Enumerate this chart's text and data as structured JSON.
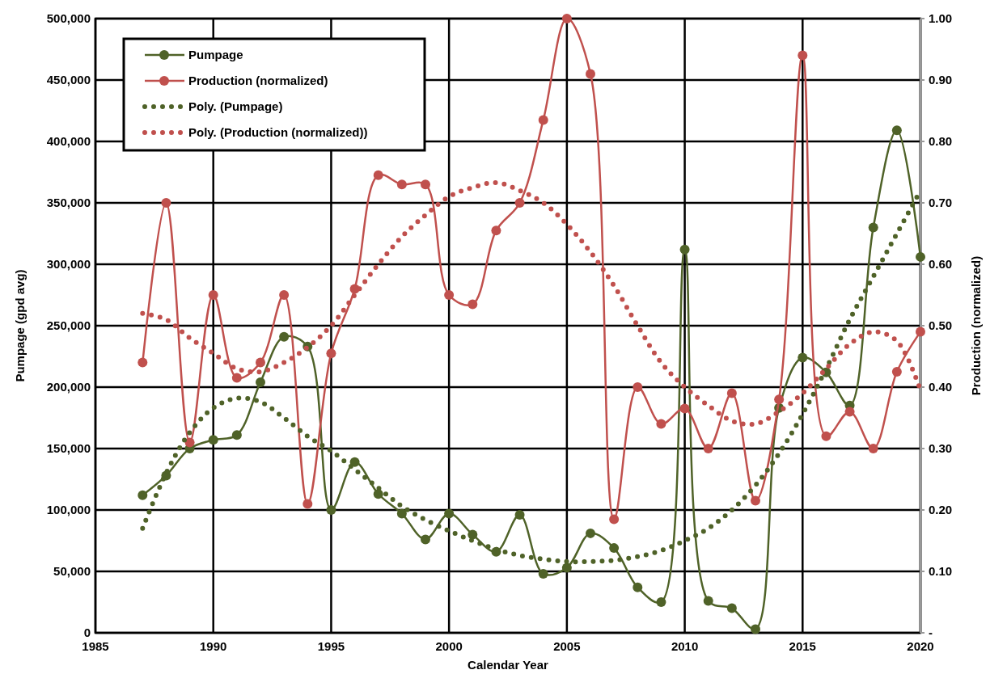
{
  "chart_data": {
    "type": "line",
    "xlabel": "Calendar Year",
    "ylabel": "Pumpage (gpd avg)",
    "y2label": "Production (normalized)",
    "x": [
      1987,
      1988,
      1989,
      1990,
      1991,
      1992,
      1993,
      1994,
      1995,
      1996,
      1997,
      1998,
      1999,
      2000,
      2001,
      2002,
      2003,
      2004,
      2005,
      2006,
      2007,
      2008,
      2009,
      2010,
      2011,
      2012,
      2013,
      2014,
      2015,
      2016,
      2017,
      2018,
      2019,
      2020
    ],
    "xlim": [
      1985,
      2020
    ],
    "xticks": [
      1985,
      1990,
      1995,
      2000,
      2005,
      2010,
      2015,
      2020
    ],
    "ylim": [
      0,
      500000
    ],
    "yticks": [
      {
        "value": 0,
        "label": "0"
      },
      {
        "value": 50000,
        "label": "50,000"
      },
      {
        "value": 100000,
        "label": "100,000"
      },
      {
        "value": 150000,
        "label": "150,000"
      },
      {
        "value": 200000,
        "label": "200,000"
      },
      {
        "value": 250000,
        "label": "250,000"
      },
      {
        "value": 300000,
        "label": "300,000"
      },
      {
        "value": 350000,
        "label": "350,000"
      },
      {
        "value": 400000,
        "label": "400,000"
      },
      {
        "value": 450000,
        "label": "450,000"
      },
      {
        "value": 500000,
        "label": "500,000"
      }
    ],
    "y2lim": [
      0,
      1
    ],
    "y2ticks": [
      {
        "value": 0,
        "label": "-"
      },
      {
        "value": 0.1,
        "label": "0.10"
      },
      {
        "value": 0.2,
        "label": "0.20"
      },
      {
        "value": 0.3,
        "label": "0.30"
      },
      {
        "value": 0.4,
        "label": "0.40"
      },
      {
        "value": 0.5,
        "label": "0.50"
      },
      {
        "value": 0.6,
        "label": "0.60"
      },
      {
        "value": 0.7,
        "label": "0.70"
      },
      {
        "value": 0.8,
        "label": "0.80"
      },
      {
        "value": 0.9,
        "label": "0.90"
      },
      {
        "value": 1,
        "label": "1.00"
      }
    ],
    "grid": true,
    "legend": "top left",
    "series": [
      {
        "name": "Pumpage",
        "color": "#4f6228",
        "marker": "circle",
        "line_style": "solid",
        "values": [
          112000,
          128000,
          150000,
          157000,
          161000,
          204000,
          241000,
          233000,
          100000,
          139000,
          113000,
          97000,
          76000,
          97000,
          80000,
          66000,
          96000,
          48000,
          53000,
          81000,
          69000,
          37000,
          25000,
          312000,
          26000,
          20000,
          3000,
          183000,
          224000,
          212000,
          185000,
          330000,
          409000,
          306000
        ]
      },
      {
        "name": "Production (normalized)",
        "color": "#c0504d",
        "marker": "circle",
        "line_style": "solid",
        "axis": "y2",
        "values": [
          0.44,
          0.7,
          0.31,
          0.55,
          0.415,
          0.44,
          0.55,
          0.21,
          0.455,
          0.56,
          0.745,
          0.73,
          0.73,
          0.55,
          0.535,
          0.655,
          0.7,
          0.835,
          1.0,
          0.91,
          0.185,
          0.4,
          0.34,
          0.365,
          0.3,
          0.39,
          0.215,
          0.38,
          0.94,
          0.32,
          0.36,
          0.3,
          0.425,
          0.49
        ]
      },
      {
        "name": "Poly. (Pumpage)",
        "color": "#4f6228",
        "marker": "none",
        "line_style": "dotted",
        "values": [
          85000,
          130000,
          163000,
          183000,
          191000,
          188000,
          175000,
          160000,
          148000,
          133000,
          118000,
          103000,
          92000,
          83000,
          75000,
          68000,
          63000,
          60000,
          58000,
          58000,
          59000,
          62000,
          67000,
          75000,
          85000,
          100000,
          120000,
          146000,
          178000,
          215000,
          255000,
          290000,
          325000,
          360000
        ]
      },
      {
        "name": "Poly. (Production (normalized))",
        "color": "#c0504d",
        "marker": "none",
        "line_style": "dotted",
        "axis": "y2",
        "values": [
          0.52,
          0.51,
          0.48,
          0.455,
          0.43,
          0.425,
          0.44,
          0.465,
          0.5,
          0.55,
          0.6,
          0.645,
          0.68,
          0.71,
          0.725,
          0.733,
          0.72,
          0.7,
          0.665,
          0.62,
          0.565,
          0.5,
          0.44,
          0.4,
          0.37,
          0.345,
          0.34,
          0.36,
          0.39,
          0.43,
          0.47,
          0.49,
          0.475,
          0.395
        ]
      }
    ]
  }
}
